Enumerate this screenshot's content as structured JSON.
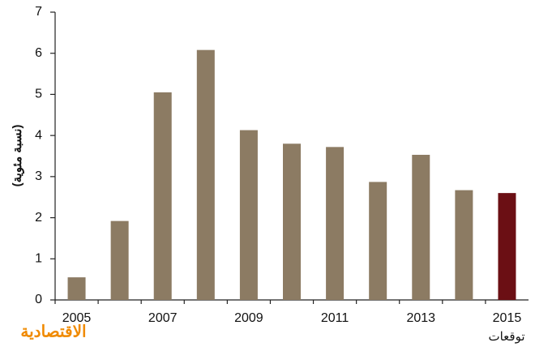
{
  "chart_data": {
    "type": "bar",
    "y_label": "(نسبة مئوية)",
    "annotation": "توقعات",
    "logo": "الاقتصادية",
    "categories": [
      "2005",
      null,
      "2007",
      null,
      "2009",
      null,
      "2011",
      null,
      "2013",
      null,
      "2015"
    ],
    "values": [
      0.55,
      1.92,
      5.05,
      6.08,
      4.13,
      3.8,
      3.72,
      2.87,
      3.53,
      2.67,
      2.6
    ],
    "colors": [
      "#8c7b63",
      "#8c7b63",
      "#8c7b63",
      "#8c7b63",
      "#8c7b63",
      "#8c7b63",
      "#8c7b63",
      "#8c7b63",
      "#8c7b63",
      "#8c7b63",
      "#6b0f14"
    ],
    "ylim": [
      0,
      7
    ],
    "yticks": [
      0,
      1,
      2,
      3,
      4,
      5,
      6,
      7
    ],
    "grid": false
  }
}
